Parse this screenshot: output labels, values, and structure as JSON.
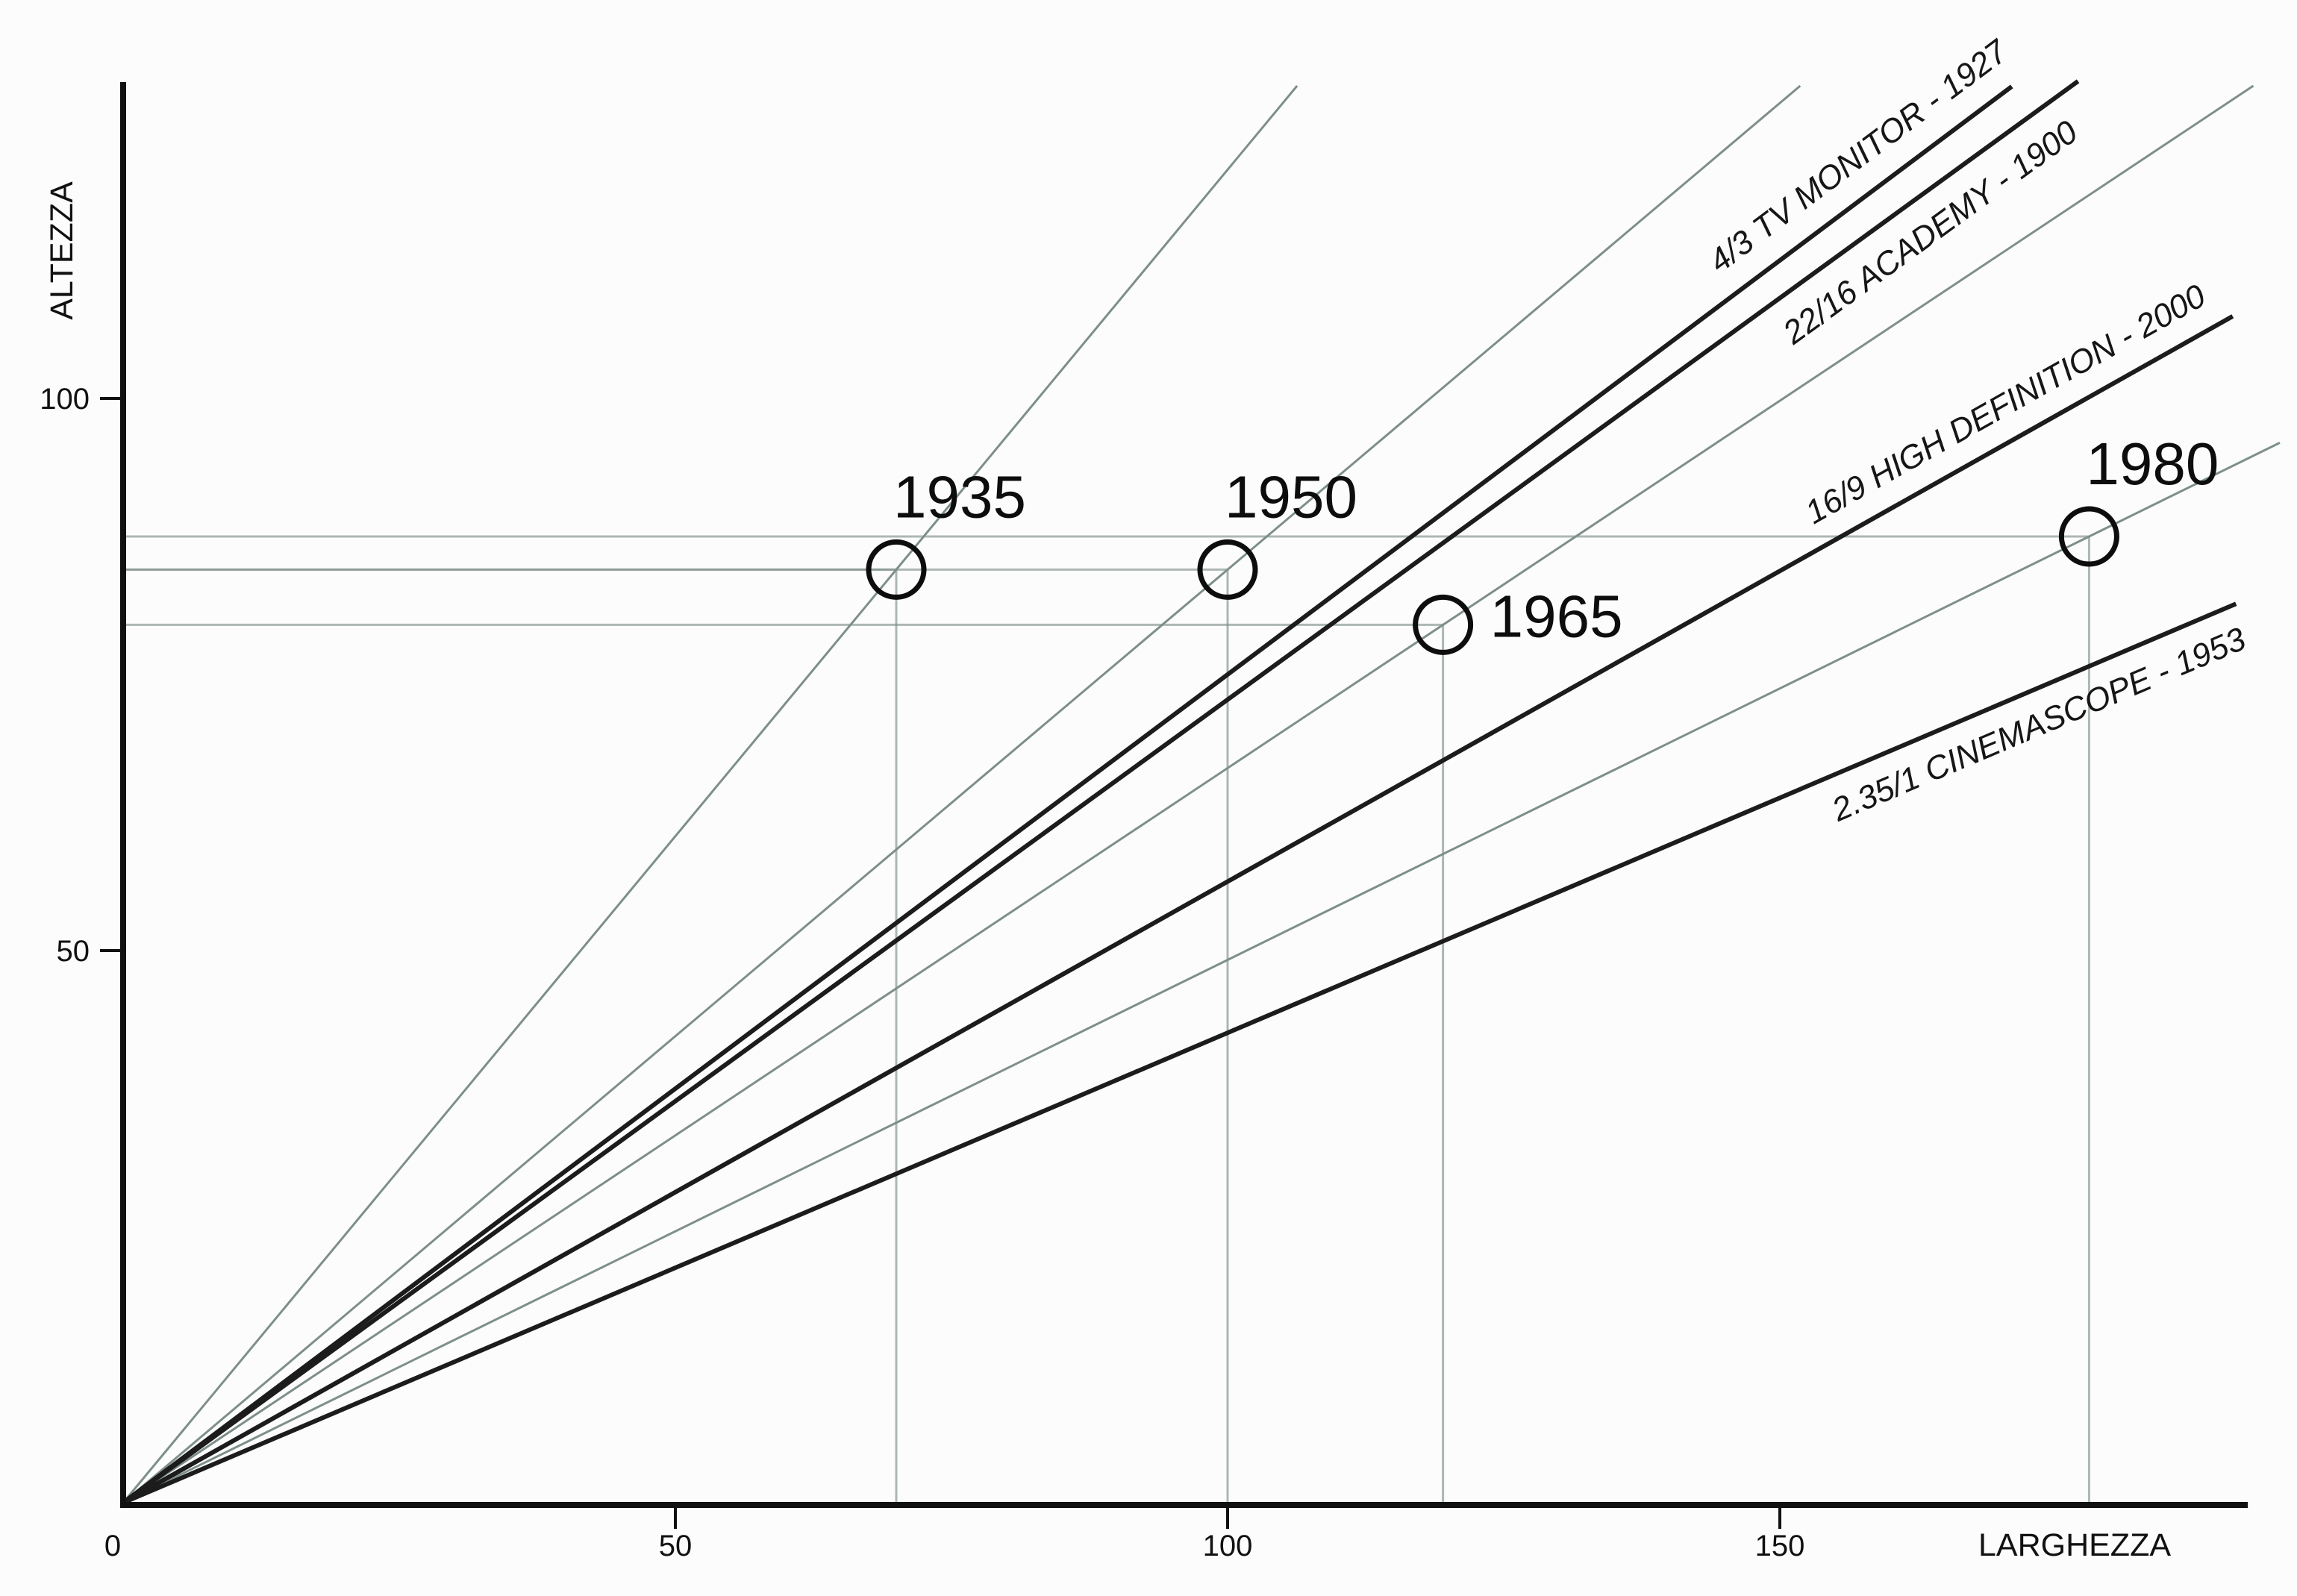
{
  "page": {
    "background": "#fcfcfc"
  },
  "chart_data": {
    "type": "scatter",
    "title": "",
    "xlabel": "LARGHEZZA",
    "ylabel": "ALTEZZA",
    "xlim": [
      0,
      196
    ],
    "ylim": [
      0,
      129
    ],
    "grid": false,
    "legend_position": "none",
    "x_ticks": [
      {
        "value": 0,
        "label": "0"
      },
      {
        "value": 50,
        "label": "50"
      },
      {
        "value": 100,
        "label": "100"
      },
      {
        "value": 150,
        "label": "150"
      }
    ],
    "y_ticks": [
      {
        "value": 50,
        "label": "50"
      },
      {
        "value": 100,
        "label": "100"
      }
    ],
    "points": [
      {
        "year": "1935",
        "width": 70,
        "height": 84.5,
        "label_pos": "above"
      },
      {
        "year": "1950",
        "width": 100,
        "height": 84.5,
        "label_pos": "above"
      },
      {
        "year": "1965",
        "width": 119.5,
        "height": 79.5,
        "label_pos": "right"
      },
      {
        "year": "1980",
        "width": 178,
        "height": 87.5,
        "label_pos": "above"
      }
    ],
    "format_lines": [
      {
        "label": "4/3 TV MONITOR - 1927",
        "ratio_w": 4,
        "ratio_h": 3,
        "end_x": 171,
        "label_side": "above"
      },
      {
        "label": "22/16 ACADEMY - 1900",
        "ratio_w": 22,
        "ratio_h": 16,
        "end_x": 177,
        "label_side": "below"
      },
      {
        "label": "16/9 HIGH DEFINITION - 2000",
        "ratio_w": 16,
        "ratio_h": 9,
        "end_x": 191,
        "label_side": "above"
      },
      {
        "label": "2.35/1 CINEMASCOPE - 1953",
        "ratio_w": 2.35,
        "ratio_h": 1,
        "end_x": 191.3,
        "label_side": "below"
      }
    ],
    "colors": {
      "axis": "#111111",
      "format_line": "#1c1c1c",
      "guide": "#94a19c",
      "year_ray": "#7e8f89",
      "point_stroke": "#0d0d0d",
      "text": "#111111",
      "background": "#fcfcfc"
    }
  }
}
